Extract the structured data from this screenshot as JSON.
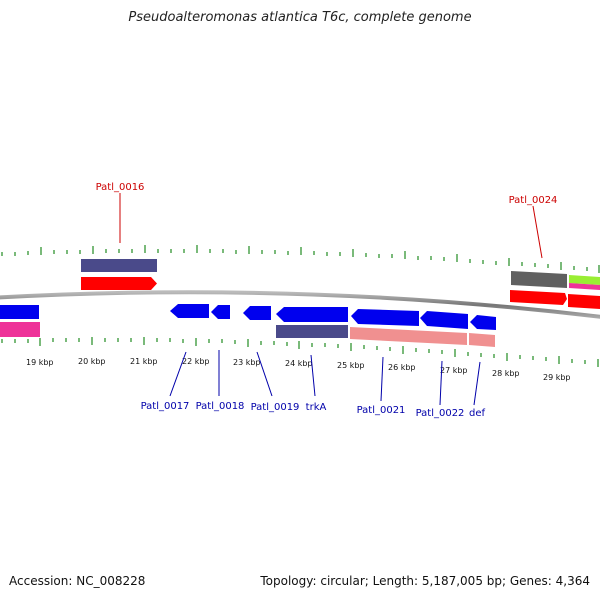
{
  "title": "Pseudoalteromonas atlantica T6c, complete genome",
  "footer": {
    "accession": "Accession: NC_008228",
    "topology": "Topology: circular; Length: 5,187,005 bp; Genes: 4,364"
  },
  "kbp_labels": [
    "19 kbp",
    "20 kbp",
    "21 kbp",
    "22 kbp",
    "23 kbp",
    "24 kbp",
    "25 kbp",
    "26 kbp",
    "27 kbp",
    "28 kbp",
    "29 kbp"
  ],
  "gene_labels": {
    "top": [
      "Patl_0016",
      "Patl_0024"
    ],
    "bottom": [
      "Patl_0017",
      "Patl_0018",
      "Patl_0019",
      "trkA",
      "Patl_0021",
      "Patl_0022",
      "def"
    ]
  },
  "colors": {
    "forward_cds": "#ff0000",
    "reverse_cds": "#0000ee",
    "gene_bar": "#4a4a8a",
    "rna_pink": "#ee3399",
    "reverse_gene_bar": "#f09090",
    "grey_gene": "#606060",
    "green_gene": "#99ee33",
    "tick": "#228b22",
    "backbone": "#808080",
    "top_label": "#cc0000",
    "bottom_label": "#0000aa"
  }
}
